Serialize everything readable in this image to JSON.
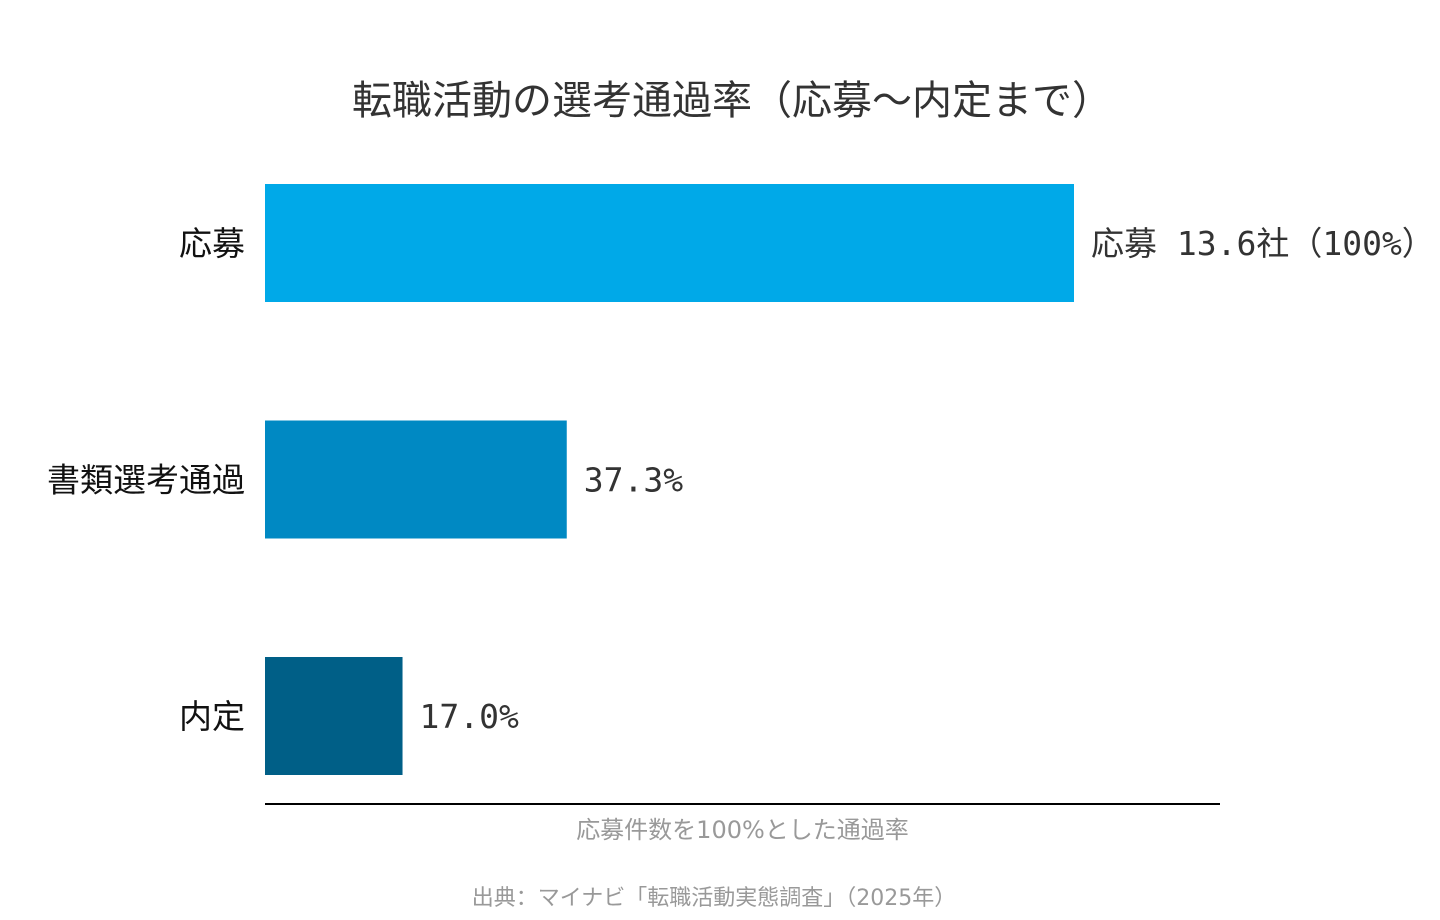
{
  "chart_data": {
    "type": "bar",
    "orientation": "horizontal",
    "title": "転職活動の選考通過率（応募～内定まで）",
    "categories": [
      "応募",
      "書類選考通過",
      "内定"
    ],
    "values": [
      100,
      37.3,
      17.0
    ],
    "value_labels": [
      "応募 13.6社（100%）",
      "37.3%",
      "17.0%"
    ],
    "colors": [
      "#00A9E8",
      "#0089C3",
      "#005F87"
    ],
    "xlabel": "応募件数を100%とした通過率",
    "ylabel": "",
    "xlim": [
      0,
      118
    ],
    "grid": false,
    "legend": "none",
    "source": "出典：マイナビ「転職活動実態調査」（2025年）"
  }
}
